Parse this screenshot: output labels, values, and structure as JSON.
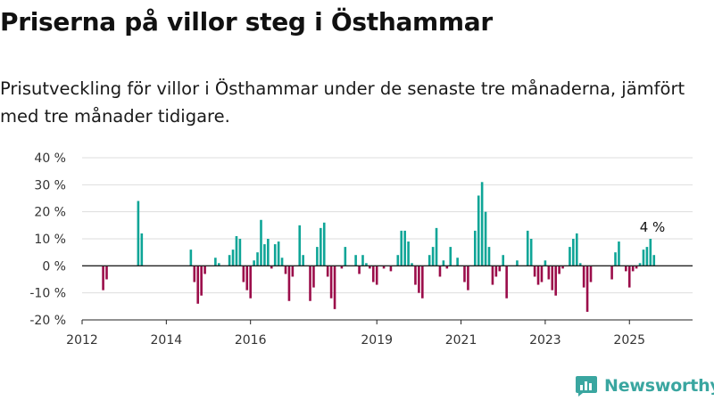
{
  "header": {
    "title": "Priserna på villor steg i Östhammar",
    "subtitle": "Prisutveckling för villor i Östhammar under de senaste tre månaderna, jämfört med tre månader tidigare."
  },
  "brand": {
    "name": "Newsworthy",
    "icon": "newsworthy-logo-icon",
    "color": "#3aa6a0"
  },
  "colors": {
    "positive": "#0ea597",
    "negative": "#9b0d4a",
    "axis": "#222222",
    "grid": "#dddddd"
  },
  "chart_data": {
    "type": "bar",
    "ylim": [
      -20,
      40
    ],
    "y_ticks": [
      {
        "value": 40,
        "label": "40 %"
      },
      {
        "value": 30,
        "label": "30 %"
      },
      {
        "value": 20,
        "label": "20 %"
      },
      {
        "value": 10,
        "label": "10 %"
      },
      {
        "value": 0,
        "label": "0 %"
      },
      {
        "value": -10,
        "label": "-10 %"
      },
      {
        "value": -20,
        "label": "-20 %"
      }
    ],
    "x_ticks": [
      {
        "value": 2012,
        "label": "2012"
      },
      {
        "value": 2014,
        "label": "2014"
      },
      {
        "value": 2016,
        "label": "2016"
      },
      {
        "value": 2019,
        "label": "2019"
      },
      {
        "value": 2021,
        "label": "2021"
      },
      {
        "value": 2023,
        "label": "2023"
      },
      {
        "value": 2025,
        "label": "2025"
      }
    ],
    "xlim": [
      2012,
      2026.5
    ],
    "grid": true,
    "annotation": {
      "label": "4 %",
      "x": "2025-08",
      "value": 4
    },
    "series": [
      {
        "points": [
          [
            "2012-07",
            -9
          ],
          [
            "2012-08",
            -5
          ],
          [
            "2013-05",
            24
          ],
          [
            "2013-06",
            12
          ],
          [
            "2014-08",
            6
          ],
          [
            "2014-09",
            -6
          ],
          [
            "2014-10",
            -14
          ],
          [
            "2014-11",
            -11
          ],
          [
            "2014-12",
            -3
          ],
          [
            "2015-03",
            3
          ],
          [
            "2015-04",
            1
          ],
          [
            "2015-07",
            4
          ],
          [
            "2015-08",
            6
          ],
          [
            "2015-09",
            11
          ],
          [
            "2015-10",
            10
          ],
          [
            "2015-11",
            -6
          ],
          [
            "2015-12",
            -9
          ],
          [
            "2016-01",
            -12
          ],
          [
            "2016-02",
            2
          ],
          [
            "2016-03",
            5
          ],
          [
            "2016-04",
            17
          ],
          [
            "2016-05",
            8
          ],
          [
            "2016-06",
            10
          ],
          [
            "2016-07",
            -1
          ],
          [
            "2016-08",
            8
          ],
          [
            "2016-09",
            9
          ],
          [
            "2016-10",
            3
          ],
          [
            "2016-11",
            -3
          ],
          [
            "2016-12",
            -13
          ],
          [
            "2017-01",
            -4
          ],
          [
            "2017-03",
            15
          ],
          [
            "2017-04",
            4
          ],
          [
            "2017-06",
            -13
          ],
          [
            "2017-07",
            -8
          ],
          [
            "2017-08",
            7
          ],
          [
            "2017-09",
            14
          ],
          [
            "2017-10",
            16
          ],
          [
            "2017-11",
            -4
          ],
          [
            "2017-12",
            -12
          ],
          [
            "2018-01",
            -16
          ],
          [
            "2018-03",
            -1
          ],
          [
            "2018-04",
            7
          ],
          [
            "2018-07",
            4
          ],
          [
            "2018-08",
            -3
          ],
          [
            "2018-09",
            4
          ],
          [
            "2018-10",
            1
          ],
          [
            "2018-11",
            -1
          ],
          [
            "2018-12",
            -6
          ],
          [
            "2019-01",
            -7
          ],
          [
            "2019-03",
            -1
          ],
          [
            "2019-05",
            -2
          ],
          [
            "2019-07",
            4
          ],
          [
            "2019-08",
            13
          ],
          [
            "2019-09",
            13
          ],
          [
            "2019-10",
            9
          ],
          [
            "2019-11",
            1
          ],
          [
            "2019-12",
            -7
          ],
          [
            "2020-01",
            -10
          ],
          [
            "2020-02",
            -12
          ],
          [
            "2020-04",
            4
          ],
          [
            "2020-05",
            7
          ],
          [
            "2020-06",
            14
          ],
          [
            "2020-07",
            -4
          ],
          [
            "2020-08",
            2
          ],
          [
            "2020-09",
            -1
          ],
          [
            "2020-10",
            7
          ],
          [
            "2020-12",
            3
          ],
          [
            "2021-02",
            -6
          ],
          [
            "2021-03",
            -9
          ],
          [
            "2021-05",
            13
          ],
          [
            "2021-06",
            26
          ],
          [
            "2021-07",
            31
          ],
          [
            "2021-08",
            20
          ],
          [
            "2021-09",
            7
          ],
          [
            "2021-10",
            -7
          ],
          [
            "2021-11",
            -4
          ],
          [
            "2021-12",
            -2
          ],
          [
            "2022-01",
            4
          ],
          [
            "2022-02",
            -12
          ],
          [
            "2022-05",
            2
          ],
          [
            "2022-08",
            13
          ],
          [
            "2022-09",
            10
          ],
          [
            "2022-10",
            -4
          ],
          [
            "2022-11",
            -7
          ],
          [
            "2022-12",
            -6
          ],
          [
            "2023-01",
            2
          ],
          [
            "2023-02",
            -5
          ],
          [
            "2023-03",
            -9
          ],
          [
            "2023-04",
            -11
          ],
          [
            "2023-05",
            -3
          ],
          [
            "2023-06",
            -1
          ],
          [
            "2023-08",
            7
          ],
          [
            "2023-09",
            10
          ],
          [
            "2023-10",
            12
          ],
          [
            "2023-11",
            1
          ],
          [
            "2023-12",
            -8
          ],
          [
            "2024-01",
            -17
          ],
          [
            "2024-02",
            -6
          ],
          [
            "2024-08",
            -5
          ],
          [
            "2024-09",
            5
          ],
          [
            "2024-10",
            9
          ],
          [
            "2024-12",
            -2
          ],
          [
            "2025-01",
            -8
          ],
          [
            "2025-02",
            -2
          ],
          [
            "2025-03",
            -1
          ],
          [
            "2025-04",
            1
          ],
          [
            "2025-05",
            6
          ],
          [
            "2025-06",
            7
          ],
          [
            "2025-07",
            10
          ],
          [
            "2025-08",
            4
          ]
        ]
      }
    ]
  }
}
